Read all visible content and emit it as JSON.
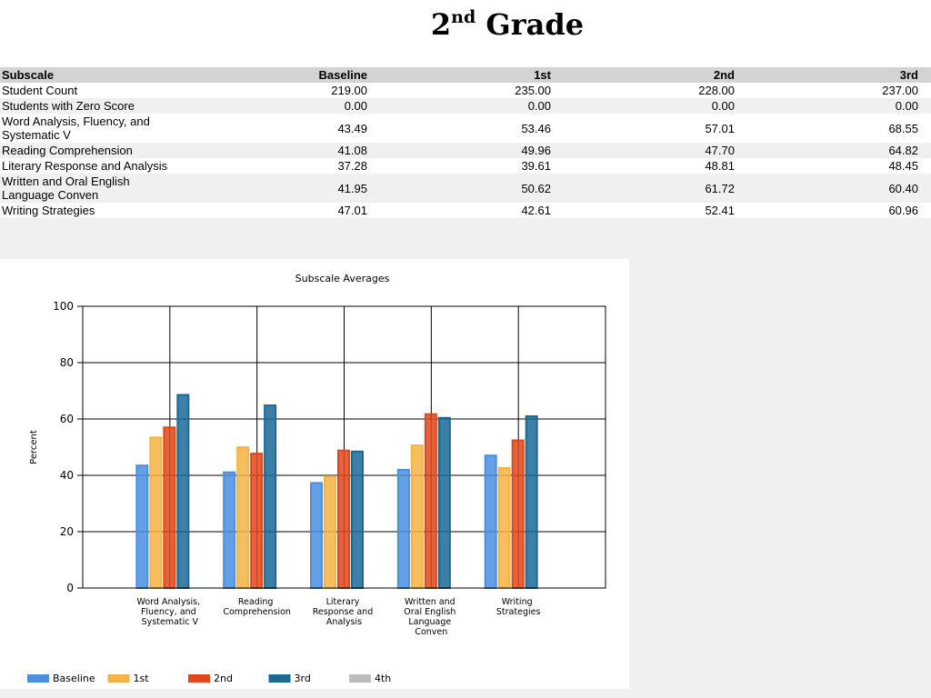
{
  "title": {
    "number": "2",
    "suffix": "nd",
    "rest": "Grade"
  },
  "table": {
    "header": [
      "Subscale",
      "Baseline",
      "1st",
      "2nd",
      "3rd"
    ],
    "rows": [
      [
        "Student Count",
        "219.00",
        "235.00",
        "228.00",
        "237.00"
      ],
      [
        "Students with Zero Score",
        "0.00",
        "0.00",
        "0.00",
        "0.00"
      ],
      [
        "Word Analysis, Fluency, and Systematic V",
        "43.49",
        "53.46",
        "57.01",
        "68.55"
      ],
      [
        "Reading Comprehension",
        "41.08",
        "49.96",
        "47.70",
        "64.82"
      ],
      [
        "Literary Response and Analysis",
        "37.28",
        "39.61",
        "48.81",
        "48.45"
      ],
      [
        "Written and Oral English Language Conven",
        "41.95",
        "50.62",
        "61.72",
        "60.40"
      ],
      [
        "Writing Strategies",
        "47.01",
        "42.61",
        "52.41",
        "60.96"
      ]
    ]
  },
  "chart_data": {
    "type": "bar",
    "title": "Subscale Averages",
    "y_label": "Percent",
    "categories": [
      "Word Analysis, Fluency, and Systematic V",
      "Reading Comprehension",
      "Literary Response and Analysis",
      "Written and Oral English Language Conven",
      "Writing Strategies"
    ],
    "series": [
      {
        "name": "Baseline",
        "color": "#4a8fe0",
        "values": [
          43.49,
          41.08,
          37.28,
          41.95,
          47.01
        ]
      },
      {
        "name": "1st",
        "color": "#f5b342",
        "values": [
          53.46,
          49.96,
          39.61,
          50.62,
          42.61
        ]
      },
      {
        "name": "2nd",
        "color": "#e0481a",
        "values": [
          57.01,
          47.7,
          48.81,
          61.72,
          52.41
        ]
      },
      {
        "name": "3rd",
        "color": "#1a6a96",
        "values": [
          68.55,
          64.82,
          48.45,
          60.4,
          60.96
        ]
      },
      {
        "name": "4th",
        "color": "#bdbdbd",
        "values": [
          null,
          null,
          null,
          null,
          null
        ]
      }
    ],
    "ylim": [
      0,
      100
    ],
    "yticks": [
      0,
      20,
      40,
      60,
      80,
      100
    ],
    "grid": true
  }
}
